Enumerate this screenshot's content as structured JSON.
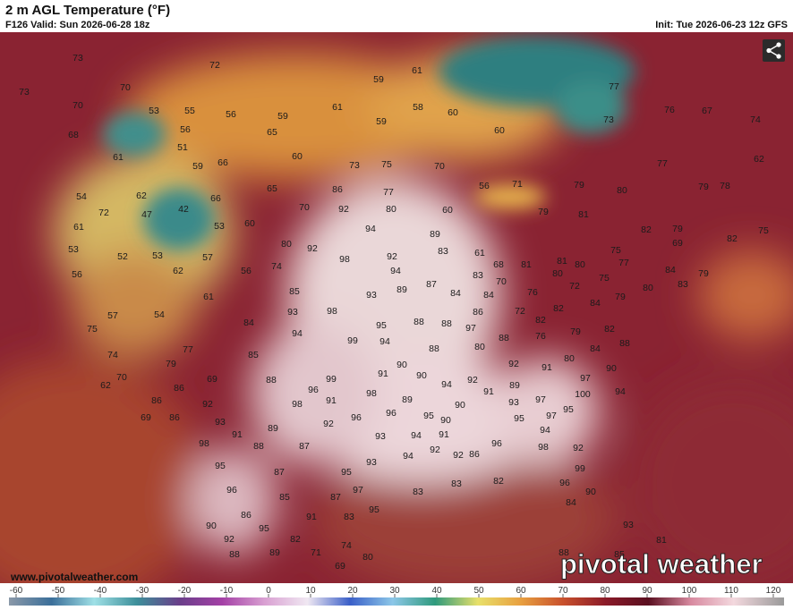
{
  "header": {
    "title": "2 m AGL Temperature (°F)",
    "valid": "F126 Valid: Sun 2026-06-28 18z",
    "init": "Init: Tue 2026-06-23 12z GFS"
  },
  "map": {
    "labels": [
      73,
      72,
      70,
      73,
      59,
      61,
      70,
      53,
      55,
      56,
      59,
      61,
      58,
      60,
      59,
      60,
      68,
      56,
      65,
      51,
      60,
      61,
      59,
      66,
      73,
      75,
      70,
      62,
      77,
      79,
      80,
      79,
      78,
      73,
      74,
      67,
      76,
      77,
      54,
      62,
      66,
      65,
      86,
      77,
      56,
      71,
      72,
      47,
      42,
      70,
      92,
      80,
      60,
      79,
      81,
      61,
      53,
      60,
      94,
      89,
      82,
      79,
      82,
      75,
      53,
      52,
      53,
      57,
      80,
      92,
      98,
      92,
      83,
      61,
      68,
      81,
      81,
      80,
      77,
      75,
      69,
      84,
      79,
      56,
      62,
      56,
      74,
      94,
      87,
      83,
      70,
      80,
      72,
      75,
      80,
      83,
      61,
      85,
      93,
      89,
      84,
      84,
      76,
      79,
      84,
      82,
      72,
      57,
      54,
      93,
      98,
      86,
      82,
      75,
      84,
      94,
      95,
      88,
      88,
      97,
      79,
      82,
      76,
      88,
      99,
      94,
      88,
      80,
      84,
      88,
      77,
      85,
      74,
      79,
      90,
      92,
      91,
      80,
      70,
      62,
      86,
      69,
      88,
      99,
      91,
      90,
      94,
      92,
      97,
      90,
      89,
      91,
      100,
      94,
      96,
      98,
      89,
      97,
      93,
      86,
      92,
      91,
      98,
      90,
      95,
      69,
      86,
      93,
      96,
      96,
      95,
      95,
      97,
      91,
      89,
      92,
      90,
      94,
      98,
      88,
      87,
      93,
      94,
      91,
      96,
      98,
      92,
      95,
      94,
      92,
      86,
      92,
      93,
      87,
      95,
      99,
      96,
      97,
      83,
      83,
      82,
      96,
      90,
      85,
      87,
      95,
      84,
      86,
      91,
      83,
      93,
      90,
      95,
      92,
      82,
      74,
      81,
      88,
      89,
      71,
      80,
      88,
      69,
      85
    ]
  },
  "colorbar": {
    "ticks": [
      -60,
      -50,
      -40,
      -30,
      -20,
      -10,
      0,
      10,
      20,
      30,
      40,
      50,
      60,
      70,
      80,
      90,
      100,
      110,
      120
    ]
  },
  "footer": {
    "website": "www.pivotalweather.com",
    "logo": "pivotal weather"
  }
}
